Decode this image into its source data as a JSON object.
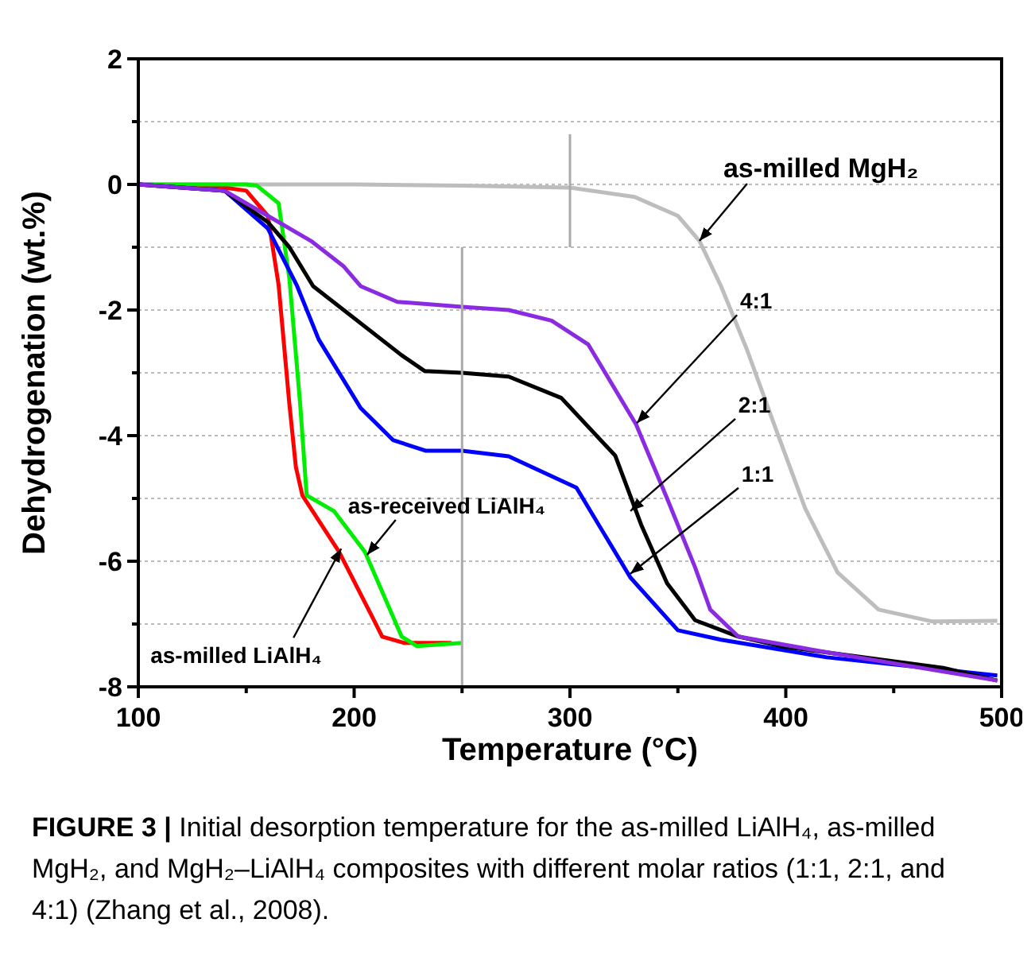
{
  "chart_data": {
    "type": "line",
    "xlabel": "Temperature (°C)",
    "ylabel": "Dehydrogenation (wt.%)",
    "xlim": [
      100,
      500
    ],
    "ylim": [
      -8,
      2
    ],
    "xticks": [
      100,
      {
        "value": 150,
        "label": null
      },
      200,
      {
        "value": 250,
        "label": null
      },
      300,
      {
        "value": 350,
        "label": null
      },
      400,
      {
        "value": 450,
        "label": null
      },
      500
    ],
    "yticks": [
      -8,
      {
        "value": -7,
        "label": null
      },
      -6,
      {
        "value": -5,
        "label": null
      },
      -4,
      {
        "value": -3,
        "label": null
      },
      -2,
      {
        "value": -1,
        "label": null
      },
      0,
      {
        "value": 1,
        "label": null
      },
      2
    ],
    "grid": "y",
    "line_style": "solid",
    "marker": "none",
    "series": [
      {
        "color": "#bdbdbd",
        "x": [
          100,
          150,
          200,
          250,
          300,
          330,
          350,
          360,
          370,
          382,
          394.6,
          409,
          424,
          443,
          468,
          498
        ],
        "values": [
          0,
          0,
          0,
          -0.02,
          -0.05,
          -0.2,
          -0.5,
          -0.9,
          -1.62,
          -2.63,
          -3.82,
          -5.16,
          -6.18,
          -6.77,
          -6.96,
          -6.95
        ]
      },
      {
        "color": "#ff0000",
        "x": [
          100,
          140,
          150,
          160,
          165,
          170,
          173,
          176,
          193,
          208,
          213,
          223,
          245
        ],
        "values": [
          0,
          -0.05,
          -0.1,
          -0.5,
          -1.6,
          -3.5,
          -4.5,
          -4.95,
          -5.85,
          -6.86,
          -7.2,
          -7.3,
          -7.3
        ]
      },
      {
        "color": "#00ee00",
        "x": [
          100,
          150,
          155,
          165,
          170,
          175,
          178,
          190.6,
          205,
          222,
          229,
          250
        ],
        "values": [
          0,
          0,
          -0.02,
          -0.3,
          -1.5,
          -3.5,
          -4.95,
          -5.2,
          -5.85,
          -7.2,
          -7.35,
          -7.3
        ]
      },
      {
        "color": "#0000ff",
        "x": [
          100,
          140,
          160,
          173.6,
          183.6,
          203,
          218,
          233,
          250,
          271.6,
          303,
          328,
          350,
          370,
          419,
          498
        ],
        "values": [
          0,
          -0.1,
          -0.7,
          -1.62,
          -2.47,
          -3.56,
          -4.07,
          -4.24,
          -4.24,
          -4.33,
          -4.83,
          -6.26,
          -7.1,
          -7.25,
          -7.53,
          -7.82
        ]
      },
      {
        "color": "#000000",
        "x": [
          100,
          140,
          160,
          170,
          181,
          222,
          232.6,
          250,
          271.6,
          296,
          321,
          333,
          345,
          358,
          378,
          399,
          473,
          498
        ],
        "values": [
          0,
          -0.1,
          -0.6,
          -1.0,
          -1.62,
          -2.72,
          -2.97,
          -3.0,
          -3.06,
          -3.4,
          -4.32,
          -5.42,
          -6.35,
          -6.94,
          -7.2,
          -7.36,
          -7.7,
          -7.9
        ]
      },
      {
        "color": "#8a2be2",
        "x": [
          100,
          140,
          160,
          180,
          195,
          203,
          220,
          250,
          271.6,
          291.5,
          308.5,
          330.6,
          345,
          358,
          365,
          378,
          419,
          498
        ],
        "values": [
          0,
          -0.1,
          -0.5,
          -0.9,
          -1.3,
          -1.62,
          -1.87,
          -1.95,
          -2.0,
          -2.17,
          -2.55,
          -3.82,
          -5.0,
          -6.1,
          -6.77,
          -7.2,
          -7.45,
          -7.9
        ]
      },
      {
        "color": "#aaaaaa",
        "x": [
          250,
          250
        ],
        "values": [
          -8,
          -1
        ]
      },
      {
        "color": "#aaaaaa",
        "x": [
          300,
          300
        ],
        "values": [
          -1,
          0.8
        ]
      }
    ],
    "annotations": [
      {
        "text": "as-milled MgH₂",
        "x": 360,
        "y": -0.9
      },
      {
        "text": "4:1",
        "x": 331,
        "y": -3.8
      },
      {
        "text": "2:1",
        "x": 328,
        "y": -5.2
      },
      {
        "text": "1:1",
        "x": 328,
        "y": -6.2
      },
      {
        "text": "as-received LiAlH₄",
        "x": 206,
        "y": -5.9
      },
      {
        "text": "as-milled LiAlH₄",
        "x": 194,
        "y": -5.8
      },
      "FIGURE 3 | Initial desorption temperature for the as-milled LiAlH₄, as-milled MgH₂, and MgH₂–LiAlH₄ composites with different molar ratios (1:1, 2:1, and 4:1) (Zhang et al., 2008)."
    ]
  }
}
